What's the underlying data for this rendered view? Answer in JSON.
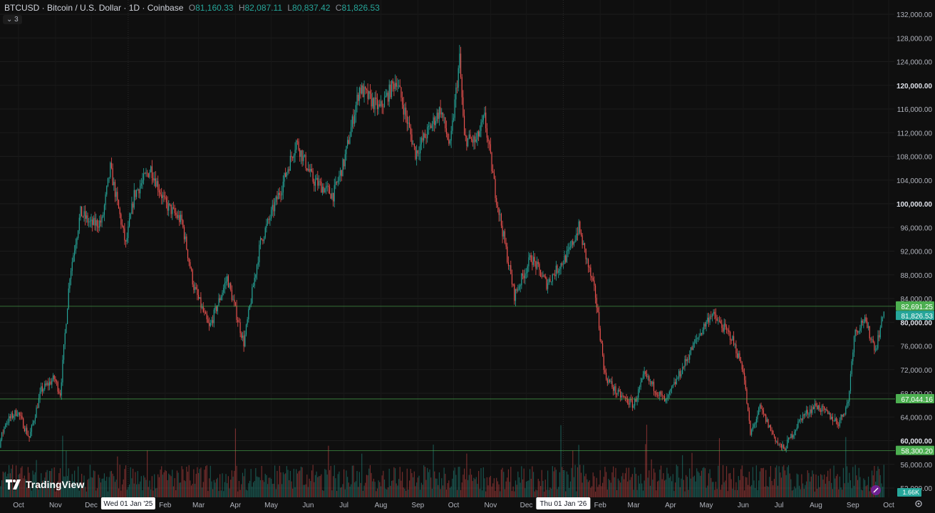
{
  "header": {
    "symbol": "BTCUSD · Bitcoin / U.S. Dollar · 1D · Coinbase",
    "open_label": "O",
    "open": "81,160.33",
    "high_label": "H",
    "high": "82,087.11",
    "low_label": "L",
    "low": "80,837.42",
    "close_label": "C",
    "close": "81,826.53",
    "indicator_toggle": "3"
  },
  "brand": {
    "name": "TradingView"
  },
  "colors": {
    "up": "#26a69a",
    "down": "#ef5350",
    "hline": "#4caf50",
    "background": "#0f0f0f"
  },
  "icons": {
    "scale_settings": "gear-icon",
    "brand": "tradingview-logo-icon",
    "chevron": "chevron-down-icon",
    "indicator": "indicator-icon"
  },
  "chart_data": {
    "type": "candlestick",
    "ylim": [
      50000,
      132000
    ],
    "y_ticks": [
      "52,000.00",
      "56,000.00",
      "60,000.00",
      "64,000.00",
      "68,000.00",
      "72,000.00",
      "76,000.00",
      "80,000.00",
      "84,000.00",
      "88,000.00",
      "92,000.00",
      "96,000.00",
      "100,000.00",
      "104,000.00",
      "108,000.00",
      "112,000.00",
      "116,000.00",
      "120,000.00",
      "124,000.00",
      "128,000.00",
      "132,000.00"
    ],
    "y_ticks_bold": [
      "60,000.00",
      "80,000.00",
      "100,000.00",
      "120,000.00"
    ],
    "x_ticks": [
      "Oct",
      "Nov",
      "Dec",
      "Feb",
      "Mar",
      "Apr",
      "May",
      "Jun",
      "Jul",
      "Aug",
      "Sep",
      "Oct",
      "Nov",
      "Dec",
      "Feb",
      "Mar",
      "Apr",
      "May",
      "Jun",
      "Jul",
      "Aug",
      "Sep",
      "Oct"
    ],
    "x_tick_dates": [
      "2024-10-01",
      "2024-11-01",
      "2024-12-01",
      "2025-02-01",
      "2025-03-01",
      "2025-04-01",
      "2025-05-01",
      "2025-06-01",
      "2025-07-01",
      "2025-08-01",
      "2025-09-01",
      "2025-10-01",
      "2025-11-01",
      "2025-12-01",
      "2026-02-01",
      "2026-03-01",
      "2026-04-01",
      "2026-05-01",
      "2026-06-01",
      "2026-07-01",
      "2026-08-01",
      "2026-09-01",
      "2026-10-01"
    ],
    "x_highlights": [
      {
        "date": "2025-01-01",
        "label": "Wed 01 Jan '25"
      },
      {
        "date": "2026-01-01",
        "label": "Thu 01 Jan '26"
      }
    ],
    "date_range": [
      "2024-09-01",
      "2026-09-27"
    ],
    "price_path": [
      [
        "2024-09-01",
        57500
      ],
      [
        "2024-09-08",
        54500
      ],
      [
        "2024-09-20",
        63000
      ],
      [
        "2024-09-30",
        65000
      ],
      [
        "2024-10-10",
        60500
      ],
      [
        "2024-10-20",
        68500
      ],
      [
        "2024-10-31",
        70500
      ],
      [
        "2024-11-05",
        68000
      ],
      [
        "2024-11-13",
        88000
      ],
      [
        "2024-11-22",
        98500
      ],
      [
        "2024-12-01",
        96500
      ],
      [
        "2024-12-10",
        97000
      ],
      [
        "2024-12-17",
        106000
      ],
      [
        "2024-12-30",
        93000
      ],
      [
        "2025-01-06",
        101500
      ],
      [
        "2025-01-20",
        106000
      ],
      [
        "2025-02-01",
        100000
      ],
      [
        "2025-02-15",
        97000
      ],
      [
        "2025-02-25",
        86000
      ],
      [
        "2025-03-10",
        79000
      ],
      [
        "2025-03-25",
        87500
      ],
      [
        "2025-04-08",
        76500
      ],
      [
        "2025-04-22",
        93500
      ],
      [
        "2025-05-10",
        103000
      ],
      [
        "2025-05-22",
        110500
      ],
      [
        "2025-06-05",
        104000
      ],
      [
        "2025-06-22",
        101500
      ],
      [
        "2025-07-01",
        107000
      ],
      [
        "2025-07-14",
        119500
      ],
      [
        "2025-07-31",
        116000
      ],
      [
        "2025-08-14",
        121000
      ],
      [
        "2025-08-30",
        108500
      ],
      [
        "2025-09-20",
        116000
      ],
      [
        "2025-09-28",
        109500
      ],
      [
        "2025-10-06",
        124500
      ],
      [
        "2025-10-10",
        111000
      ],
      [
        "2025-10-20",
        110500
      ],
      [
        "2025-10-27",
        114500
      ],
      [
        "2025-11-05",
        102000
      ],
      [
        "2025-11-21",
        84500
      ],
      [
        "2025-12-05",
        91000
      ],
      [
        "2025-12-18",
        86500
      ],
      [
        "2026-01-05",
        91500
      ],
      [
        "2026-01-14",
        96000
      ],
      [
        "2026-01-28",
        84500
      ],
      [
        "2026-02-05",
        71000
      ],
      [
        "2026-02-15",
        68000
      ],
      [
        "2026-03-01",
        66000
      ],
      [
        "2026-03-10",
        71000
      ],
      [
        "2026-03-28",
        66500
      ],
      [
        "2026-04-20",
        76000
      ],
      [
        "2026-05-05",
        81500
      ],
      [
        "2026-05-22",
        77500
      ],
      [
        "2026-06-01",
        72000
      ],
      [
        "2026-06-07",
        61000
      ],
      [
        "2026-06-15",
        65500
      ],
      [
        "2026-06-30",
        59500
      ],
      [
        "2026-07-05",
        58500
      ],
      [
        "2026-07-20",
        64000
      ],
      [
        "2026-08-01",
        66000
      ],
      [
        "2026-08-20",
        63000
      ],
      [
        "2026-08-28",
        66500
      ],
      [
        "2026-09-02",
        78000
      ],
      [
        "2026-09-10",
        80500
      ],
      [
        "2026-09-20",
        75500
      ],
      [
        "2026-09-27",
        81826.53
      ]
    ],
    "price_lines": [
      {
        "value": 82691.25,
        "label": "82,691.25",
        "color": "#4caf50"
      },
      {
        "value": 67044.16,
        "label": "67,044.16",
        "color": "#4caf50"
      },
      {
        "value": 58300.2,
        "label": "58,300.20",
        "color": "#4caf50"
      }
    ],
    "last_price": {
      "value": 81826.53,
      "label": "81,826.53",
      "color": "#26a69a"
    },
    "volume": {
      "last_label": "1.66K",
      "color": "#26a69a"
    },
    "grid": true
  }
}
